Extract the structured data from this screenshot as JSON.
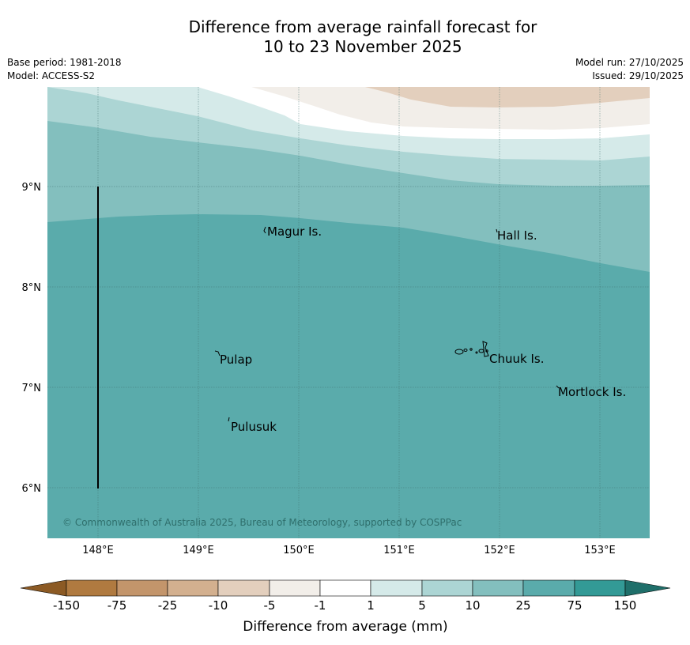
{
  "header": {
    "title_line1": "Difference from average rainfall forecast for",
    "title_line2": "10 to 23 November 2025",
    "base_period": "Base period: 1981-2018",
    "model": "Model: ACCESS-S2",
    "model_run": "Model run: 27/10/2025",
    "issued": "Issued: 29/10/2025"
  },
  "map": {
    "lon_ticks": [
      "148°E",
      "149°E",
      "150°E",
      "151°E",
      "152°E",
      "153°E"
    ],
    "lat_ticks": [
      "9°N",
      "8°N",
      "7°N",
      "6°N"
    ],
    "places": [
      {
        "id": "magur",
        "label": "Magur Is."
      },
      {
        "id": "hall",
        "label": "Hall Is."
      },
      {
        "id": "pulap",
        "label": "Pulap"
      },
      {
        "id": "chuuk",
        "label": "Chuuk Is."
      },
      {
        "id": "mortlock",
        "label": "Mortlock Is."
      },
      {
        "id": "pulusuk",
        "label": "Pulusuk"
      }
    ],
    "copyright": "© Commonwealth of Australia 2025, Bureau of Meteorology, supported by COSPPac"
  },
  "legend": {
    "title": "Difference from average (mm)",
    "labels": [
      "-150",
      "-75",
      "-25",
      "-10",
      "-5",
      "-1",
      "1",
      "5",
      "10",
      "25",
      "75",
      "150"
    ],
    "colors": {
      "below_150": "#8c5a24",
      "m150_m75": "#b07a40",
      "m75_m25": "#c3956b",
      "m25_m10": "#d3b08f",
      "m10_m5": "#e3cfbd",
      "m5_m1": "#f2eee9",
      "m1_p1": "#ffffff",
      "p1_p5": "#d5eae9",
      "p5_p10": "#acd5d4",
      "p10_p25": "#83bfbe",
      "p25_p75": "#5aabab",
      "p75_p150": "#339a96",
      "above_150": "#1f6f6a"
    }
  }
}
